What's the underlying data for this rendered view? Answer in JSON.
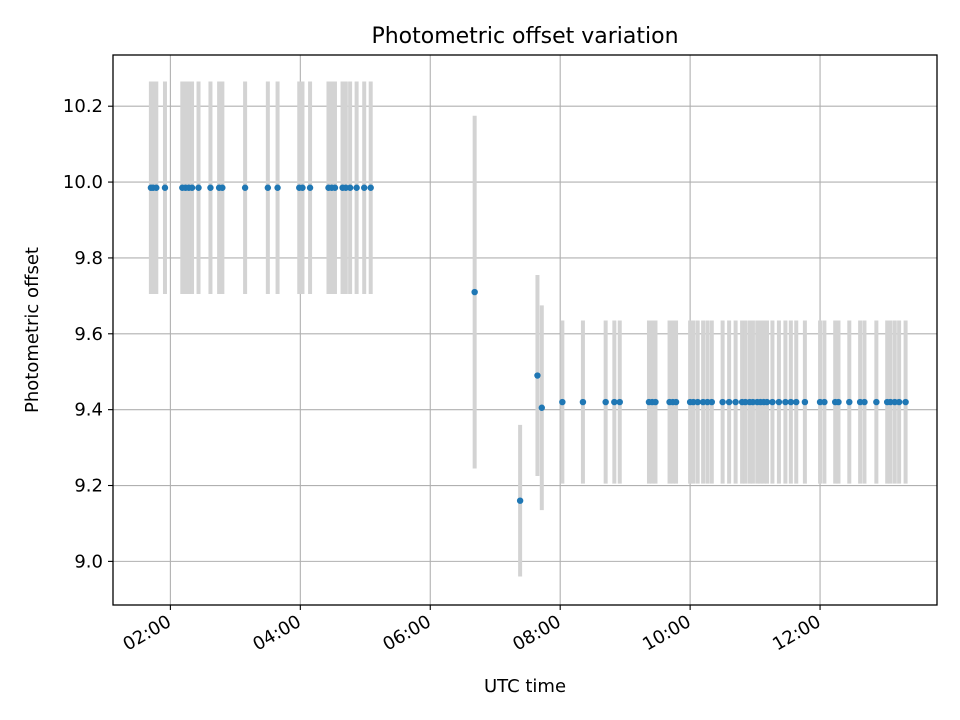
{
  "chart_data": {
    "type": "scatter",
    "title": "Photometric offset variation",
    "xlabel": "UTC time",
    "ylabel": "Photometric offset",
    "xlim": [
      "01:07",
      "13:48"
    ],
    "ylim": [
      8.885,
      10.335
    ],
    "xticks": [
      "02:00",
      "04:00",
      "06:00",
      "08:00",
      "10:00",
      "12:00"
    ],
    "yticks": [
      9.0,
      9.2,
      9.4,
      9.6,
      9.8,
      10.0,
      10.2
    ],
    "grid": true,
    "marker_color": "#1f77b4",
    "errorbar_color": "#d3d3d3",
    "points": [
      {
        "x": "01:42",
        "y": 9.985,
        "err": 0.28
      },
      {
        "x": "01:44",
        "y": 9.985,
        "err": 0.28
      },
      {
        "x": "01:47",
        "y": 9.985,
        "err": 0.28
      },
      {
        "x": "01:55",
        "y": 9.985,
        "err": 0.28
      },
      {
        "x": "02:11",
        "y": 9.985,
        "err": 0.28
      },
      {
        "x": "02:14",
        "y": 9.985,
        "err": 0.28
      },
      {
        "x": "02:17",
        "y": 9.985,
        "err": 0.28
      },
      {
        "x": "02:20",
        "y": 9.985,
        "err": 0.28
      },
      {
        "x": "02:26",
        "y": 9.985,
        "err": 0.28
      },
      {
        "x": "02:37",
        "y": 9.985,
        "err": 0.28
      },
      {
        "x": "02:45",
        "y": 9.985,
        "err": 0.28
      },
      {
        "x": "02:48",
        "y": 9.985,
        "err": 0.28
      },
      {
        "x": "03:09",
        "y": 9.985,
        "err": 0.28
      },
      {
        "x": "03:30",
        "y": 9.985,
        "err": 0.28
      },
      {
        "x": "03:39",
        "y": 9.985,
        "err": 0.28
      },
      {
        "x": "03:59",
        "y": 9.985,
        "err": 0.28
      },
      {
        "x": "04:02",
        "y": 9.985,
        "err": 0.28
      },
      {
        "x": "04:09",
        "y": 9.985,
        "err": 0.28
      },
      {
        "x": "04:26",
        "y": 9.985,
        "err": 0.28
      },
      {
        "x": "04:29",
        "y": 9.985,
        "err": 0.28
      },
      {
        "x": "04:32",
        "y": 9.985,
        "err": 0.28
      },
      {
        "x": "04:39",
        "y": 9.985,
        "err": 0.28
      },
      {
        "x": "04:42",
        "y": 9.985,
        "err": 0.28
      },
      {
        "x": "04:46",
        "y": 9.985,
        "err": 0.28
      },
      {
        "x": "04:52",
        "y": 9.985,
        "err": 0.28
      },
      {
        "x": "04:59",
        "y": 9.985,
        "err": 0.28
      },
      {
        "x": "05:05",
        "y": 9.985,
        "err": 0.28
      },
      {
        "x": "06:41",
        "y": 9.71,
        "err": 0.465
      },
      {
        "x": "07:23",
        "y": 9.16,
        "err": 0.2
      },
      {
        "x": "07:39",
        "y": 9.49,
        "err": 0.265
      },
      {
        "x": "07:43",
        "y": 9.405,
        "err": 0.27
      },
      {
        "x": "08:02",
        "y": 9.42,
        "err": 0.215
      },
      {
        "x": "08:21",
        "y": 9.42,
        "err": 0.215
      },
      {
        "x": "08:42",
        "y": 9.42,
        "err": 0.215
      },
      {
        "x": "08:50",
        "y": 9.42,
        "err": 0.215
      },
      {
        "x": "08:55",
        "y": 9.42,
        "err": 0.215
      },
      {
        "x": "09:22",
        "y": 9.42,
        "err": 0.215
      },
      {
        "x": "09:25",
        "y": 9.42,
        "err": 0.215
      },
      {
        "x": "09:28",
        "y": 9.42,
        "err": 0.215
      },
      {
        "x": "09:41",
        "y": 9.42,
        "err": 0.215
      },
      {
        "x": "09:44",
        "y": 9.42,
        "err": 0.215
      },
      {
        "x": "09:47",
        "y": 9.42,
        "err": 0.215
      },
      {
        "x": "10:00",
        "y": 9.42,
        "err": 0.215
      },
      {
        "x": "10:03",
        "y": 9.42,
        "err": 0.215
      },
      {
        "x": "10:07",
        "y": 9.42,
        "err": 0.215
      },
      {
        "x": "10:12",
        "y": 9.42,
        "err": 0.215
      },
      {
        "x": "10:16",
        "y": 9.42,
        "err": 0.215
      },
      {
        "x": "10:20",
        "y": 9.42,
        "err": 0.215
      },
      {
        "x": "10:30",
        "y": 9.42,
        "err": 0.215
      },
      {
        "x": "10:36",
        "y": 9.42,
        "err": 0.215
      },
      {
        "x": "10:42",
        "y": 9.42,
        "err": 0.215
      },
      {
        "x": "10:48",
        "y": 9.42,
        "err": 0.215
      },
      {
        "x": "10:51",
        "y": 9.42,
        "err": 0.215
      },
      {
        "x": "10:55",
        "y": 9.42,
        "err": 0.215
      },
      {
        "x": "10:58",
        "y": 9.42,
        "err": 0.215
      },
      {
        "x": "11:02",
        "y": 9.42,
        "err": 0.215
      },
      {
        "x": "11:05",
        "y": 9.42,
        "err": 0.215
      },
      {
        "x": "11:08",
        "y": 9.42,
        "err": 0.215
      },
      {
        "x": "11:11",
        "y": 9.42,
        "err": 0.215
      },
      {
        "x": "11:16",
        "y": 9.42,
        "err": 0.215
      },
      {
        "x": "11:22",
        "y": 9.42,
        "err": 0.215
      },
      {
        "x": "11:28",
        "y": 9.42,
        "err": 0.215
      },
      {
        "x": "11:33",
        "y": 9.42,
        "err": 0.215
      },
      {
        "x": "11:38",
        "y": 9.42,
        "err": 0.215
      },
      {
        "x": "11:46",
        "y": 9.42,
        "err": 0.215
      },
      {
        "x": "12:00",
        "y": 9.42,
        "err": 0.215
      },
      {
        "x": "12:04",
        "y": 9.42,
        "err": 0.215
      },
      {
        "x": "12:14",
        "y": 9.42,
        "err": 0.215
      },
      {
        "x": "12:17",
        "y": 9.42,
        "err": 0.215
      },
      {
        "x": "12:27",
        "y": 9.42,
        "err": 0.215
      },
      {
        "x": "12:37",
        "y": 9.42,
        "err": 0.215
      },
      {
        "x": "12:41",
        "y": 9.42,
        "err": 0.215
      },
      {
        "x": "12:52",
        "y": 9.42,
        "err": 0.215
      },
      {
        "x": "13:02",
        "y": 9.42,
        "err": 0.215
      },
      {
        "x": "13:05",
        "y": 9.42,
        "err": 0.215
      },
      {
        "x": "13:09",
        "y": 9.42,
        "err": 0.215
      },
      {
        "x": "13:13",
        "y": 9.42,
        "err": 0.215
      },
      {
        "x": "13:19",
        "y": 9.42,
        "err": 0.215
      }
    ]
  }
}
